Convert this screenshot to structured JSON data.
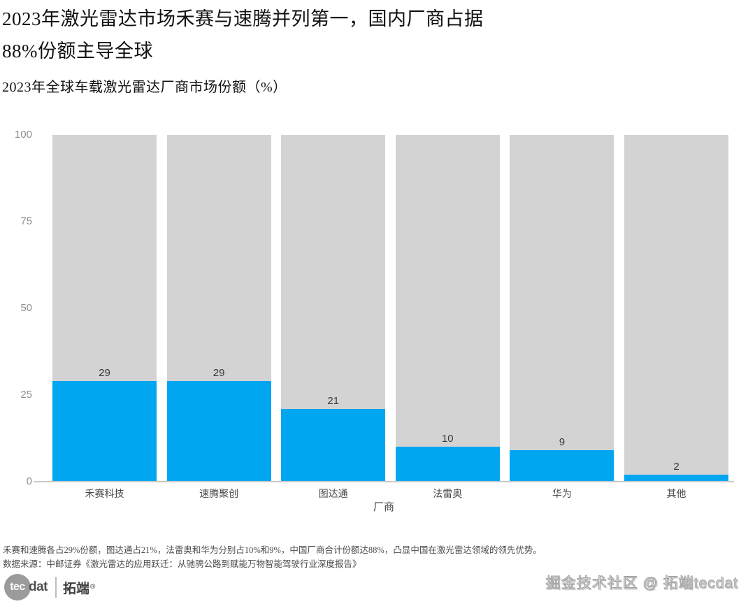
{
  "header": {
    "title_line1": "2023年激光雷达市场禾赛与速腾并列第一，国内厂商占据",
    "title_line2": "88%份额主导全球",
    "subtitle": "2023年全球车载激光雷达厂商市场份额（%）"
  },
  "chart_data": {
    "type": "bar",
    "title": "2023年全球车载激光雷达厂商市场份额（%）",
    "categories": [
      "禾赛科技",
      "速腾聚创",
      "图达通",
      "法雷奥",
      "华为",
      "其他"
    ],
    "values": [
      29,
      29,
      21,
      10,
      9,
      2
    ],
    "xlabel": "厂商",
    "ylabel": "",
    "ylim": [
      0,
      100
    ],
    "yticks": [
      0,
      25,
      50,
      75,
      100
    ],
    "grid": false,
    "legend": "none",
    "bar_color": "#00a6ef",
    "background_bar_color": "#d3d3d3",
    "background_bar_value": 100
  },
  "footer": {
    "note": "禾赛和速腾各占29%份额，图达通占21%，法雷奥和华为分别占10%和9%，中国厂商合计份额达88%，凸显中国在激光雷达领域的领先优势。",
    "source": "数据来源：中邮证券《激光雷达的应用跃迁：从驰骋公路到赋能万物智能驾驶行业深度报告》"
  },
  "branding": {
    "logo_tec": "tec",
    "logo_dat": "dat",
    "logo_cn": "拓端",
    "logo_reg": "®",
    "watermark": "掘金技术社区 @ 拓端tecdat"
  }
}
